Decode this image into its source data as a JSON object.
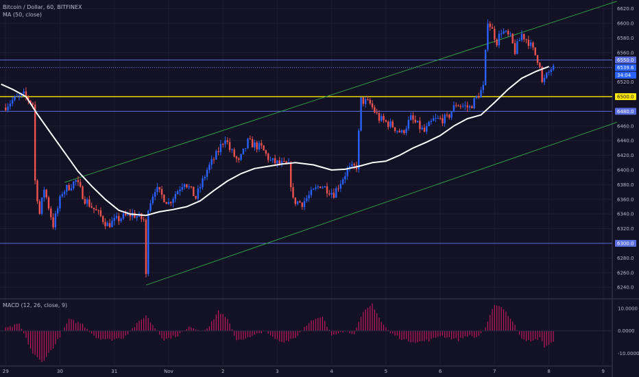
{
  "header": {
    "title": "Bitcoin / Dollar, 60, BITFINEX",
    "indicator": "MA (50, close)"
  },
  "macd_legend": "MACD (12, 26, close, 9)",
  "colors": {
    "background": "#131225",
    "bull": "#2962ff",
    "bear": "#ef5350",
    "ma": "#ffffff",
    "channel": "#2ea043",
    "hline": "#5b6ee1",
    "yellow": "#ffea00",
    "macd_hist": "#c2185b",
    "axis_text": "#b8b8cc",
    "grid": "#1d1c33"
  },
  "price_axis": {
    "ticks": [
      6240,
      6260,
      6280,
      6300,
      6320,
      6340,
      6360,
      6380,
      6400,
      6420,
      6440,
      6460,
      6480,
      6500,
      6520,
      6540,
      6560,
      6580,
      6600,
      6620
    ],
    "tick_labels": [
      "6240.0",
      "6260.0",
      "6280.0",
      "6300.0",
      "6320.0",
      "6340.0",
      "6360.0",
      "6380.0",
      "6400.0",
      "6420.0",
      "6440.0",
      "6460.0",
      "6480.0",
      "6500.0",
      "6520.0",
      "6540.0",
      "6560.0",
      "6580.0",
      "6600.0",
      "6620.0"
    ],
    "range": [
      6228,
      6628
    ]
  },
  "macd_axis": {
    "ticks": [
      10,
      0,
      -10
    ],
    "tick_labels": [
      "10.0000",
      "0.0000",
      "-10.0000"
    ],
    "range": [
      -15,
      13
    ]
  },
  "time_axis": {
    "labels": [
      "29",
      "30",
      "31",
      "Nov",
      "2",
      "3",
      "4",
      "5",
      "6",
      "7",
      "8",
      "9"
    ],
    "positions": [
      0,
      24,
      48,
      72,
      96,
      120,
      144,
      168,
      192,
      216,
      240,
      264
    ],
    "range": [
      -2.5,
      268
    ]
  },
  "horizontal_levels": [
    {
      "price": 6550,
      "label": "6550.0",
      "kind": "hline"
    },
    {
      "price": 6500,
      "label": "6500.0",
      "kind": "yellow"
    },
    {
      "price": 6480,
      "label": "6480.0",
      "kind": "hline"
    },
    {
      "price": 6300,
      "label": "6300.0",
      "kind": "hline"
    }
  ],
  "current_price": {
    "price": 6539.6,
    "label": "6539.6",
    "countdown": "34:04"
  },
  "channel": {
    "upper": [
      [
        26,
        6383
      ],
      [
        270,
        6630
      ]
    ],
    "lower": [
      [
        62,
        6243
      ],
      [
        270,
        6465
      ]
    ]
  },
  "chart_data": {
    "type": "candlestick",
    "symbol": "Bitcoin / Dollar",
    "interval": "60",
    "exchange": "BITFINEX",
    "x_unit": "hourly bars since 29 Oct 00:00",
    "anchors": [
      [
        0,
        6485
      ],
      [
        4,
        6495
      ],
      [
        9,
        6502
      ],
      [
        13,
        6490
      ],
      [
        14,
        6385
      ],
      [
        16,
        6340
      ],
      [
        18,
        6375
      ],
      [
        22,
        6325
      ],
      [
        26,
        6370
      ],
      [
        32,
        6385
      ],
      [
        36,
        6360
      ],
      [
        42,
        6340
      ],
      [
        46,
        6325
      ],
      [
        52,
        6335
      ],
      [
        57,
        6340
      ],
      [
        62,
        6332
      ],
      [
        63,
        6255
      ],
      [
        64,
        6350
      ],
      [
        67,
        6375
      ],
      [
        73,
        6355
      ],
      [
        80,
        6385
      ],
      [
        85,
        6362
      ],
      [
        90,
        6400
      ],
      [
        94,
        6420
      ],
      [
        98,
        6445
      ],
      [
        100,
        6428
      ],
      [
        104,
        6410
      ],
      [
        108,
        6438
      ],
      [
        114,
        6430
      ],
      [
        118,
        6412
      ],
      [
        126,
        6405
      ],
      [
        128,
        6358
      ],
      [
        132,
        6355
      ],
      [
        140,
        6380
      ],
      [
        146,
        6368
      ],
      [
        152,
        6400
      ],
      [
        156,
        6405
      ],
      [
        158,
        6495
      ],
      [
        162,
        6490
      ],
      [
        166,
        6470
      ],
      [
        172,
        6460
      ],
      [
        176,
        6450
      ],
      [
        180,
        6470
      ],
      [
        186,
        6452
      ],
      [
        190,
        6468
      ],
      [
        196,
        6470
      ],
      [
        200,
        6490
      ],
      [
        206,
        6485
      ],
      [
        212,
        6512
      ],
      [
        214,
        6605
      ],
      [
        218,
        6575
      ],
      [
        220,
        6590
      ],
      [
        224,
        6580
      ],
      [
        226,
        6562
      ],
      [
        229,
        6585
      ],
      [
        232,
        6575
      ],
      [
        237,
        6545
      ],
      [
        238,
        6518
      ],
      [
        242,
        6538
      ]
    ],
    "ma": {
      "name": "MA (50, close)",
      "points": [
        [
          -2,
          6517
        ],
        [
          3,
          6510
        ],
        [
          9,
          6500
        ],
        [
          14,
          6476
        ],
        [
          20,
          6450
        ],
        [
          26,
          6424
        ],
        [
          32,
          6398
        ],
        [
          38,
          6378
        ],
        [
          44,
          6360
        ],
        [
          50,
          6345
        ],
        [
          55,
          6340
        ],
        [
          62,
          6338
        ],
        [
          68,
          6343
        ],
        [
          74,
          6346
        ],
        [
          80,
          6350
        ],
        [
          86,
          6358
        ],
        [
          92,
          6372
        ],
        [
          98,
          6385
        ],
        [
          104,
          6395
        ],
        [
          110,
          6402
        ],
        [
          116,
          6405
        ],
        [
          122,
          6408
        ],
        [
          128,
          6410
        ],
        [
          136,
          6407
        ],
        [
          144,
          6400
        ],
        [
          150,
          6401
        ],
        [
          156,
          6405
        ],
        [
          162,
          6410
        ],
        [
          168,
          6412
        ],
        [
          174,
          6420
        ],
        [
          180,
          6430
        ],
        [
          186,
          6438
        ],
        [
          192,
          6447
        ],
        [
          198,
          6460
        ],
        [
          204,
          6470
        ],
        [
          210,
          6475
        ],
        [
          216,
          6492
        ],
        [
          222,
          6510
        ],
        [
          228,
          6525
        ],
        [
          234,
          6534
        ],
        [
          240,
          6541
        ]
      ]
    },
    "macd_histogram": {
      "name": "MACD (12, 26, close, 9)",
      "points": [
        [
          0,
          1
        ],
        [
          6,
          3
        ],
        [
          12,
          -10
        ],
        [
          16,
          -14
        ],
        [
          22,
          -6
        ],
        [
          28,
          5
        ],
        [
          34,
          3
        ],
        [
          40,
          -3
        ],
        [
          46,
          -4
        ],
        [
          52,
          -3
        ],
        [
          58,
          3
        ],
        [
          62,
          7
        ],
        [
          64,
          4
        ],
        [
          70,
          -4
        ],
        [
          76,
          -2
        ],
        [
          82,
          2
        ],
        [
          86,
          0
        ],
        [
          90,
          2
        ],
        [
          94,
          9
        ],
        [
          98,
          5
        ],
        [
          102,
          -4
        ],
        [
          108,
          -3
        ],
        [
          114,
          0
        ],
        [
          118,
          -3
        ],
        [
          122,
          -5
        ],
        [
          128,
          -3
        ],
        [
          134,
          4
        ],
        [
          140,
          6
        ],
        [
          144,
          -2
        ],
        [
          148,
          0
        ],
        [
          154,
          -1
        ],
        [
          158,
          8
        ],
        [
          162,
          12
        ],
        [
          166,
          4
        ],
        [
          170,
          -1
        ],
        [
          176,
          -4
        ],
        [
          182,
          -5
        ],
        [
          188,
          -4
        ],
        [
          192,
          -2
        ],
        [
          196,
          -3
        ],
        [
          200,
          -4
        ],
        [
          204,
          -2
        ],
        [
          208,
          -3
        ],
        [
          212,
          1
        ],
        [
          216,
          12
        ],
        [
          220,
          10
        ],
        [
          224,
          4
        ],
        [
          228,
          -3
        ],
        [
          232,
          -5
        ],
        [
          236,
          -3
        ],
        [
          238,
          -7
        ],
        [
          242,
          -5
        ]
      ]
    }
  }
}
